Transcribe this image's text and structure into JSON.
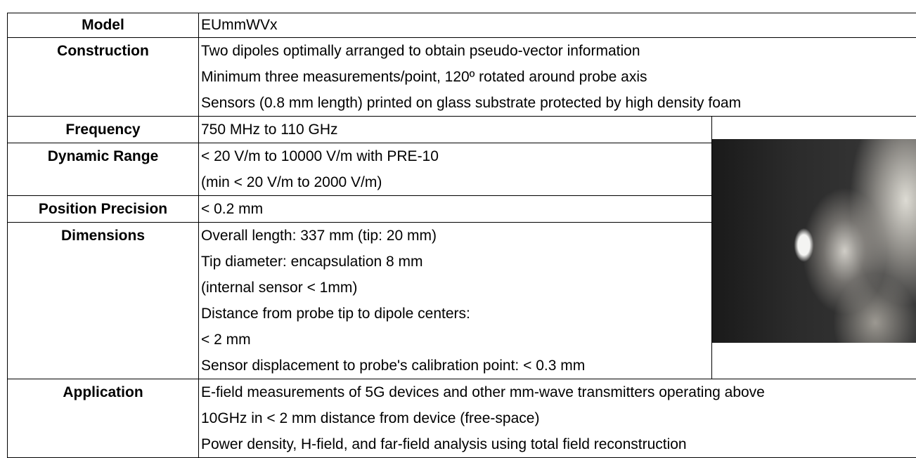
{
  "table": {
    "rows": [
      {
        "label": "Model",
        "lines": [
          "EUmmWVx"
        ]
      },
      {
        "label": "Construction",
        "lines": [
          "Two dipoles optimally arranged to obtain pseudo-vector information",
          "Minimum three measurements/point, 120º rotated around probe axis",
          "Sensors (0.8 mm length) printed on glass substrate protected by high density foam"
        ]
      },
      {
        "label": "Frequency",
        "lines": [
          "750 MHz to 110 GHz"
        ]
      },
      {
        "label": "Dynamic Range",
        "lines": [
          "< 20 V/m to 10000 V/m with PRE-10",
          "(min < 20 V/m to 2000 V/m)"
        ]
      },
      {
        "label": "Position Precision",
        "lines": [
          "< 0.2 mm"
        ]
      },
      {
        "label": "Dimensions",
        "lines": [
          "Overall length: 337 mm (tip: 20 mm)",
          "Tip diameter: encapsulation 8 mm",
          "(internal sensor < 1mm)",
          "Distance from probe tip to dipole centers:",
          "< 2 mm",
          "Sensor displacement to probe's calibration point: < 0.3 mm"
        ]
      },
      {
        "label": "Application",
        "lines": [
          "E-field measurements of 5G devices and other mm-wave transmitters operating above",
          "10GHz in < 2 mm distance from device (free-space)",
          "Power density, H-field, and far-field analysis using total field reconstruction"
        ]
      }
    ]
  }
}
